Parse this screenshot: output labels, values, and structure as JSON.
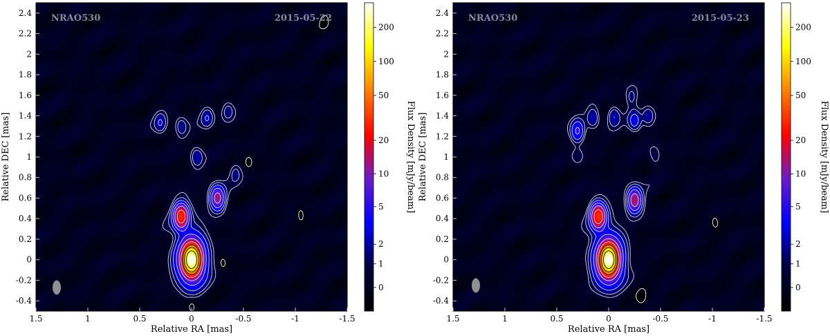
{
  "chart_data": [
    {
      "type": "heatmap",
      "source_label": "NRAO530",
      "date_label": "2015-05-22",
      "xlabel": "Relative RA [mas]",
      "ylabel": "Relative DEC [mas]",
      "colorbar_label": "Flux Density [mJy/beam]",
      "xlim": [
        1.5,
        -1.5
      ],
      "ylim": [
        -0.5,
        2.5
      ],
      "x_ticks": [
        1.5,
        1,
        0.5,
        0,
        -0.5,
        -1,
        -1.5
      ],
      "x_tick_labels": [
        "1.5",
        "1",
        "0.5",
        "0",
        "-0.5",
        "-1",
        "-1.5"
      ],
      "y_ticks": [
        -0.4,
        -0.2,
        0,
        0.2,
        0.4,
        0.6,
        0.8,
        1,
        1.2,
        1.4,
        1.6,
        1.8,
        2,
        2.2,
        2.4
      ],
      "y_tick_labels": [
        "-0.4",
        "-0.2",
        "0",
        "0.2",
        "0.4",
        "0.6",
        "0.8",
        "1",
        "1.2",
        "1.4",
        "1.6",
        "1.8",
        "2",
        "2.2",
        "2.4"
      ],
      "colorbar_ticks": [
        0,
        1,
        2,
        5,
        10,
        20,
        50,
        100,
        200
      ],
      "colorbar_tick_labels": [
        "0",
        "1",
        "2",
        "5",
        "10",
        "20",
        "50",
        "100",
        "200"
      ],
      "colorbar_range": [
        -1,
        330
      ],
      "colormap": [
        "#000000",
        "#00003c",
        "#0000ff",
        "#6a1cc8",
        "#ff0000",
        "#ff8000",
        "#ffff00",
        "#ffffff"
      ],
      "beam": {
        "x": 1.3,
        "y": -0.27,
        "major_mas": 0.14,
        "minor_mas": 0.08,
        "color": "#909090"
      },
      "components": [
        {
          "x": 0.0,
          "y": 0.0,
          "peak": 330
        },
        {
          "x": 0.1,
          "y": 0.42,
          "peak": 28
        },
        {
          "x": -0.25,
          "y": 0.6,
          "peak": 12
        },
        {
          "x": 0.3,
          "y": 1.33,
          "peak": 2.2
        },
        {
          "x": 0.1,
          "y": 1.3,
          "peak": 1.8
        },
        {
          "x": -0.15,
          "y": 1.38,
          "peak": 2.2
        },
        {
          "x": -0.35,
          "y": 1.45,
          "peak": 1.6
        },
        {
          "x": -0.05,
          "y": 1.0,
          "peak": 2.2
        },
        {
          "x": -0.42,
          "y": 0.85,
          "peak": 1.4
        }
      ],
      "negative_contours": [
        {
          "x": -0.3,
          "y": -0.03
        },
        {
          "x": -1.05,
          "y": 0.45
        },
        {
          "x": -0.55,
          "y": 0.95
        },
        {
          "x": 0.0,
          "y": -0.46
        },
        {
          "x": -1.28,
          "y": 2.33
        }
      ]
    },
    {
      "type": "heatmap",
      "source_label": "NRAO530",
      "date_label": "2015-05-23",
      "xlabel": "Relative RA [mas]",
      "ylabel": "Relative DEC [mas]",
      "colorbar_label": "Flux Density [mJy/beam]",
      "xlim": [
        1.5,
        -1.5
      ],
      "ylim": [
        -0.5,
        2.5
      ],
      "x_ticks": [
        1.5,
        1,
        0.5,
        0,
        -0.5,
        -1,
        -1.5
      ],
      "x_tick_labels": [
        "1.5",
        "1",
        "0.5",
        "0",
        "-0.5",
        "-1",
        "-1.5"
      ],
      "y_ticks": [
        -0.4,
        -0.2,
        0,
        0.2,
        0.4,
        0.6,
        0.8,
        1,
        1.2,
        1.4,
        1.6,
        1.8,
        2,
        2.2,
        2.4
      ],
      "y_tick_labels": [
        "-0.4",
        "-0.2",
        "0",
        "0.2",
        "0.4",
        "0.6",
        "0.8",
        "1",
        "1.2",
        "1.4",
        "1.6",
        "1.8",
        "2",
        "2.2",
        "2.4"
      ],
      "colorbar_ticks": [
        0,
        1,
        2,
        5,
        10,
        20,
        50,
        100,
        200
      ],
      "colorbar_tick_labels": [
        "0",
        "1",
        "2",
        "5",
        "10",
        "20",
        "50",
        "100",
        "200"
      ],
      "colorbar_range": [
        -1,
        330
      ],
      "colormap": [
        "#000000",
        "#00003c",
        "#0000ff",
        "#6a1cc8",
        "#ff0000",
        "#ff8000",
        "#ffff00",
        "#ffffff"
      ],
      "beam": {
        "x": 1.28,
        "y": -0.25,
        "major_mas": 0.14,
        "minor_mas": 0.08,
        "color": "#909090"
      },
      "components": [
        {
          "x": 0.0,
          "y": 0.0,
          "peak": 330
        },
        {
          "x": 0.1,
          "y": 0.42,
          "peak": 30
        },
        {
          "x": -0.25,
          "y": 0.58,
          "peak": 14
        },
        {
          "x": 0.3,
          "y": 1.25,
          "peak": 5
        },
        {
          "x": 0.15,
          "y": 1.38,
          "peak": 2.2
        },
        {
          "x": -0.05,
          "y": 1.4,
          "peak": 2.2
        },
        {
          "x": -0.25,
          "y": 1.35,
          "peak": 3.2
        },
        {
          "x": -0.38,
          "y": 1.4,
          "peak": 1.8
        },
        {
          "x": -0.22,
          "y": 1.58,
          "peak": 1.4
        },
        {
          "x": -0.45,
          "y": 1.0,
          "peak": 1.2
        },
        {
          "x": 0.3,
          "y": 1.0,
          "peak": 0.8
        }
      ],
      "negative_contours": [
        {
          "x": -1.02,
          "y": 0.38
        },
        {
          "x": -0.32,
          "y": -0.37
        }
      ]
    }
  ]
}
